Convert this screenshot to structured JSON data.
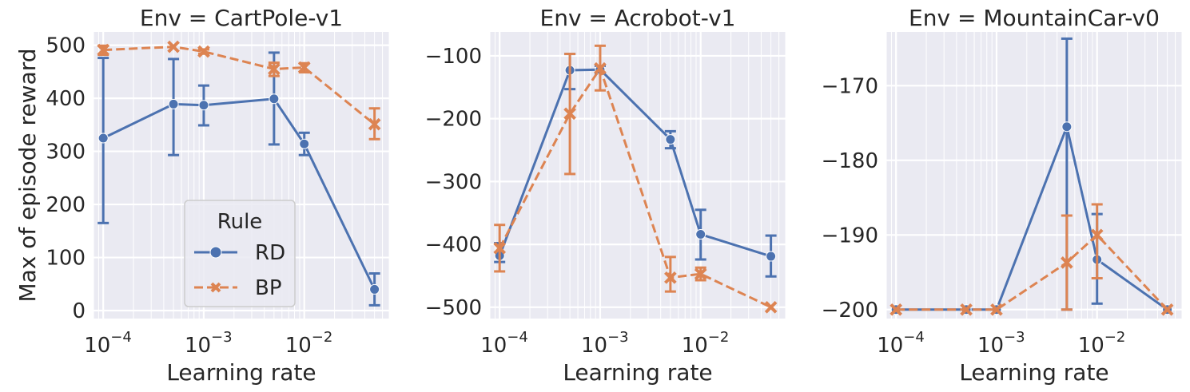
{
  "chart_data": [
    {
      "type": "line",
      "title": "Env = CartPole-v1",
      "xlabel": "Learning rate",
      "ylabel": "Max of episode reward",
      "xscale": "log",
      "xlim": [
        8e-05,
        0.07
      ],
      "ylim": [
        -15,
        525
      ],
      "yticks": [
        0,
        100,
        200,
        300,
        400,
        500
      ],
      "ytick_labels": [
        "0",
        "100",
        "200",
        "300",
        "400",
        "500"
      ],
      "xticks": [
        0.0001,
        0.001,
        0.01
      ],
      "xtick_labels": [
        "10",
        "10",
        "10"
      ],
      "xtick_exponents": [
        "−4",
        "−3",
        "−2"
      ],
      "grid": true,
      "legend": {
        "title": "Rule",
        "placement": "lower center"
      },
      "x": [
        0.0001,
        0.0005,
        0.001,
        0.005,
        0.01,
        0.05
      ],
      "series": [
        {
          "name": "RD",
          "color": "#4c72b0",
          "marker": "circle",
          "linestyle": "solid",
          "values": [
            325,
            389,
            387,
            399,
            314,
            40
          ],
          "err_low": [
            165,
            293,
            349,
            313,
            293,
            10
          ],
          "err_high": [
            476,
            474,
            424,
            486,
            335,
            70
          ]
        },
        {
          "name": "BP",
          "color": "#dd8452",
          "marker": "x",
          "linestyle": "dashed",
          "values": [
            491,
            497,
            488,
            455,
            458,
            351
          ],
          "err_low": [
            482,
            497,
            484,
            442,
            449,
            323
          ],
          "err_high": [
            499,
            497,
            492,
            467,
            466,
            381
          ]
        }
      ]
    },
    {
      "type": "line",
      "title": "Env = Acrobot-v1",
      "xlabel": "Learning rate",
      "ylabel": "",
      "xscale": "log",
      "xlim": [
        8e-05,
        0.07
      ],
      "ylim": [
        -518,
        -62
      ],
      "yticks": [
        -500,
        -400,
        -300,
        -200,
        -100
      ],
      "ytick_labels": [
        "−500",
        "−400",
        "−300",
        "−200",
        "−100"
      ],
      "xticks": [
        0.0001,
        0.001,
        0.01
      ],
      "xtick_labels": [
        "10",
        "10",
        "10"
      ],
      "xtick_exponents": [
        "−4",
        "−3",
        "−2"
      ],
      "grid": true,
      "x": [
        0.0001,
        0.0005,
        0.001,
        0.005,
        0.01,
        0.05
      ],
      "series": [
        {
          "name": "RD",
          "color": "#4c72b0",
          "marker": "circle",
          "linestyle": "solid",
          "values": [
            -418,
            -123,
            -122,
            -233,
            -384,
            -419
          ],
          "err_low": [
            -428,
            -153,
            -128,
            -247,
            -424,
            -451
          ],
          "err_high": [
            -398,
            -97,
            -116,
            -220,
            -345,
            -386
          ]
        },
        {
          "name": "BP",
          "color": "#dd8452",
          "marker": "x",
          "linestyle": "dashed",
          "values": [
            -406,
            -192,
            -120,
            -453,
            -447,
            -500
          ],
          "err_low": [
            -443,
            -288,
            -155,
            -475,
            -457,
            -500
          ],
          "err_high": [
            -369,
            -97,
            -84,
            -420,
            -437,
            -500
          ]
        }
      ]
    },
    {
      "type": "line",
      "title": "Env = MountainCar-v0",
      "xlabel": "Learning rate",
      "ylabel": "",
      "xscale": "log",
      "xlim": [
        8e-05,
        0.07
      ],
      "ylim": [
        -201.2,
        -162.8
      ],
      "yticks": [
        -200,
        -190,
        -180,
        -170
      ],
      "ytick_labels": [
        "−200",
        "−190",
        "−180",
        "−170"
      ],
      "xticks": [
        0.0001,
        0.001,
        0.01
      ],
      "xtick_labels": [
        "10",
        "10",
        "10"
      ],
      "xtick_exponents": [
        "−4",
        "−3",
        "−2"
      ],
      "grid": true,
      "x": [
        0.0001,
        0.0005,
        0.001,
        0.005,
        0.01,
        0.05
      ],
      "series": [
        {
          "name": "RD",
          "color": "#4c72b0",
          "marker": "circle",
          "linestyle": "solid",
          "values": [
            -200,
            -200,
            -200,
            -175.5,
            -193.3,
            -200
          ],
          "err_low": [
            -200,
            -200,
            -200,
            -200,
            -199.2,
            -200
          ],
          "err_high": [
            -200,
            -200,
            -200,
            -163.7,
            -187.2,
            -200
          ]
        },
        {
          "name": "BP",
          "color": "#dd8452",
          "marker": "x",
          "linestyle": "dashed",
          "values": [
            -200,
            -200,
            -200,
            -193.7,
            -190,
            -200
          ],
          "err_low": [
            -200,
            -200,
            -200,
            -200,
            -195.8,
            -200
          ],
          "err_high": [
            -200,
            -200,
            -200,
            -187.4,
            -185.9,
            -200
          ]
        }
      ]
    }
  ]
}
